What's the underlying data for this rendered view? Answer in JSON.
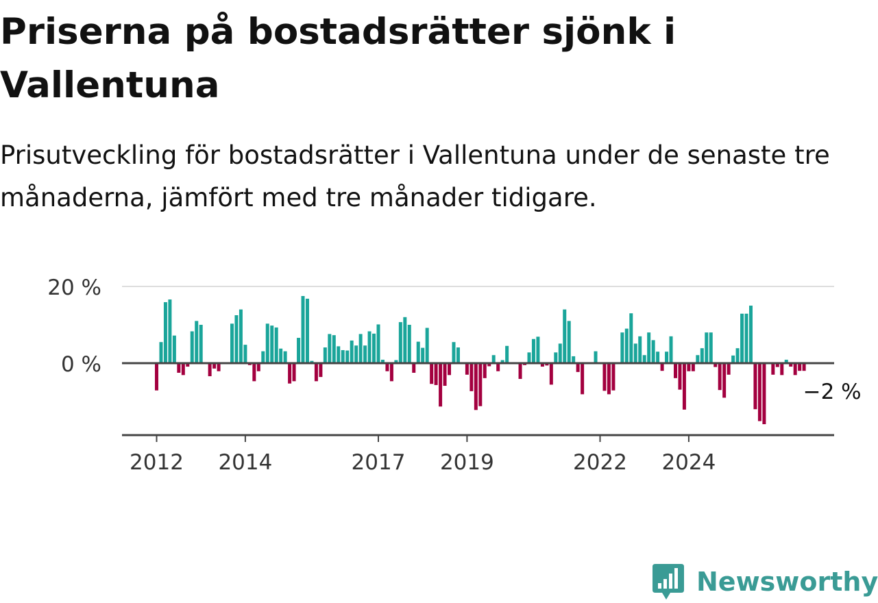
{
  "title": "Priserna på bostadsrätter sjönk i Vallentuna",
  "subtitle": "Prisutveckling för bostadsrätter i Vallentuna under de senaste tre månaderna, jämfört med tre månader tidigare.",
  "brand": {
    "name": "Newsworthy",
    "icon": "newsworthy-logo-icon",
    "color": "#3a9b95"
  },
  "chart_data": {
    "type": "bar",
    "unit": "%",
    "ylim": [
      -20,
      20
    ],
    "yticks": [
      0,
      20
    ],
    "ytick_labels": [
      "0 %",
      "20 %"
    ],
    "grid": true,
    "xticks": [
      {
        "label": "2012",
        "index": 0
      },
      {
        "label": "2014",
        "index": 20
      },
      {
        "label": "2017",
        "index": 50
      },
      {
        "label": "2019",
        "index": 70
      },
      {
        "label": "2022",
        "index": 100
      },
      {
        "label": "2024",
        "index": 120
      }
    ],
    "colors": {
      "positive": "#1aa59a",
      "negative": "#a3003f",
      "axis": "#444444",
      "grid": "#dddddd"
    },
    "last_value_label": "−2 %",
    "values": [
      -7.1,
      5.5,
      15.9,
      16.6,
      7.2,
      -2.5,
      -3.1,
      -0.9,
      8.3,
      11.0,
      10.0,
      0.0,
      -3.4,
      -1.4,
      -2.1,
      0.0,
      0.0,
      10.3,
      12.5,
      14.0,
      4.8,
      -0.5,
      -4.7,
      -2.1,
      3.1,
      10.3,
      9.8,
      9.3,
      3.8,
      3.1,
      -5.3,
      -4.7,
      6.6,
      17.5,
      16.8,
      0.6,
      -4.7,
      -3.6,
      4.1,
      7.6,
      7.3,
      4.4,
      3.4,
      3.3,
      5.9,
      4.6,
      7.6,
      4.6,
      8.3,
      7.7,
      10.1,
      0.9,
      -2.1,
      -4.7,
      0.8,
      10.7,
      12.0,
      10.0,
      -2.5,
      5.6,
      4.0,
      9.2,
      -5.4,
      -5.7,
      -11.3,
      -5.9,
      -3.1,
      5.5,
      4.1,
      0.0,
      -3.0,
      -7.3,
      -12.2,
      -11.2,
      -3.9,
      -0.8,
      2.1,
      -2.1,
      0.8,
      4.5,
      0.0,
      0.0,
      -4.1,
      -0.5,
      2.8,
      6.3,
      6.9,
      -0.9,
      -0.6,
      -5.6,
      2.8,
      5.1,
      14.0,
      11.0,
      1.8,
      -2.3,
      -8.1,
      0.0,
      0.0,
      3.1,
      0.0,
      -7.2,
      -8.1,
      -7.1,
      0.0,
      8.0,
      9.0,
      13.0,
      5.1,
      7.0,
      2.1,
      8.0,
      6.0,
      3.0,
      -2.0,
      3.0,
      7.0,
      -3.9,
      -6.9,
      -12.1,
      -2.1,
      -2.1,
      2.1,
      3.9,
      8.0,
      8.0,
      -1.0,
      -7.0,
      -9.0,
      -3.0,
      2.0,
      3.9,
      12.9,
      12.9,
      15.0,
      -12.0,
      -15.1,
      -15.9,
      0.0,
      -3.0,
      -1.0,
      -3.1,
      0.9,
      -0.9,
      -3.1,
      -2.0,
      -2.0
    ]
  }
}
